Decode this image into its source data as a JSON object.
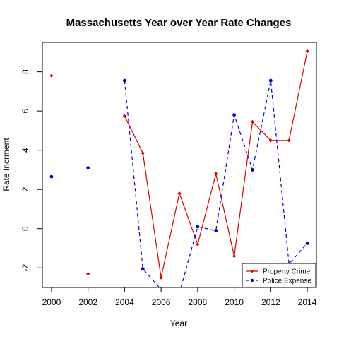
{
  "chart_data": {
    "type": "line",
    "title": "Massachusetts Year over Year Rate Changes",
    "xlabel": "Year",
    "ylabel": "Rate Incrment",
    "xlim": [
      1999.5,
      2014.5
    ],
    "ylim": [
      -3.0,
      9.5
    ],
    "xticks": [
      2000,
      2002,
      2004,
      2006,
      2008,
      2010,
      2012,
      2014
    ],
    "yticks": [
      -2,
      0,
      2,
      4,
      6,
      8
    ],
    "xtick_labels": [
      "2000",
      "2002",
      "2004",
      "2006",
      "2008",
      "2010",
      "2012",
      "2014"
    ],
    "ytick_labels": [
      "-2",
      "0",
      "2",
      "4",
      "6",
      "8"
    ],
    "grid": false,
    "legend_position": "bottom-right",
    "x": [
      2000,
      2001,
      2002,
      2003,
      2004,
      2005,
      2006,
      2007,
      2008,
      2009,
      2010,
      2011,
      2012,
      2013,
      2014
    ],
    "series": [
      {
        "name": "Property Crime",
        "color": "#dd0000",
        "line_style": "solid",
        "marker": "diamond",
        "values": [
          7.8,
          null,
          -2.3,
          null,
          5.75,
          3.85,
          -2.5,
          1.8,
          -0.8,
          2.8,
          -1.4,
          5.45,
          4.5,
          4.5,
          9.05
        ]
      },
      {
        "name": "Police Expense",
        "color": "#0000dd",
        "line_style": "dashed",
        "marker": "circle",
        "values": [
          2.65,
          null,
          3.1,
          null,
          7.55,
          -2.05,
          -3.1,
          -3.3,
          0.1,
          -0.1,
          5.8,
          3.0,
          7.55,
          -1.8,
          -0.75
        ]
      }
    ]
  }
}
